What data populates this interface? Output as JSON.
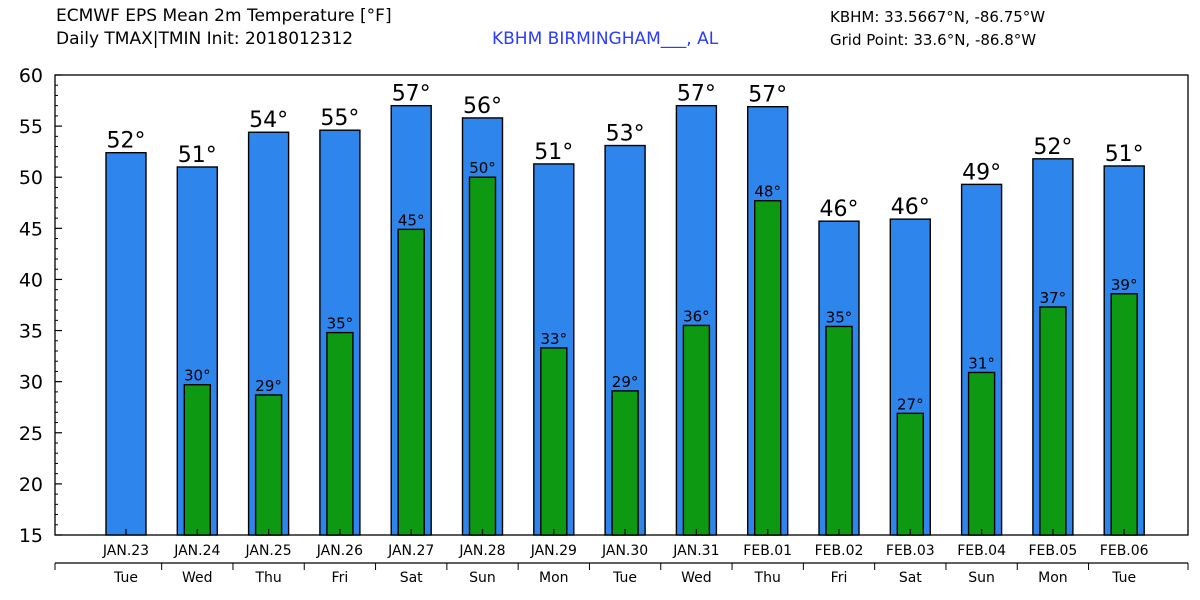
{
  "header": {
    "title_line1": "ECMWF EPS Mean 2m Temperature [°F]",
    "title_line2": "Daily TMAX|TMIN Init: 2018012312",
    "station": "KBHM BIRMINGHAM___, AL",
    "station_coords": "KBHM: 33.5667°N, -86.75°W",
    "grid_point": "Grid Point: 33.6°N, -86.8°W"
  },
  "colors": {
    "tmax_bar": "#2e85ec",
    "tmin_bar": "#0d9a12",
    "station_text": "#2b3cff"
  },
  "chart_data": {
    "type": "bar",
    "title": "ECMWF EPS Mean 2m Temperature [°F]",
    "ylim": [
      15,
      60
    ],
    "yticks": [
      15,
      20,
      25,
      30,
      35,
      40,
      45,
      50,
      55,
      60
    ],
    "grid": false,
    "categories": [
      "JAN.23",
      "JAN.24",
      "JAN.25",
      "JAN.26",
      "JAN.27",
      "JAN.28",
      "JAN.29",
      "JAN.30",
      "JAN.31",
      "FEB.01",
      "FEB.02",
      "FEB.03",
      "FEB.04",
      "FEB.05",
      "FEB.06"
    ],
    "weekdays": [
      "Tue",
      "Wed",
      "Thu",
      "Fri",
      "Sat",
      "Sun",
      "Mon",
      "Tue",
      "Wed",
      "Thu",
      "Fri",
      "Sat",
      "Sun",
      "Mon",
      "Tue"
    ],
    "series": [
      {
        "name": "TMAX",
        "values": [
          52.4,
          51.0,
          54.4,
          54.6,
          57.0,
          55.8,
          51.3,
          53.1,
          57.0,
          56.9,
          45.7,
          45.9,
          49.3,
          51.8,
          51.1
        ],
        "labels": [
          "52°",
          "51°",
          "54°",
          "55°",
          "57°",
          "56°",
          "51°",
          "53°",
          "57°",
          "57°",
          "46°",
          "46°",
          "49°",
          "52°",
          "51°"
        ]
      },
      {
        "name": "TMIN",
        "values": [
          null,
          29.7,
          28.7,
          34.8,
          44.9,
          50.0,
          33.3,
          29.1,
          35.5,
          47.7,
          35.4,
          26.9,
          30.9,
          37.3,
          38.6
        ],
        "labels": [
          "",
          "30°",
          "29°",
          "35°",
          "45°",
          "50°",
          "33°",
          "29°",
          "36°",
          "48°",
          "35°",
          "27°",
          "31°",
          "37°",
          "39°"
        ]
      }
    ]
  }
}
